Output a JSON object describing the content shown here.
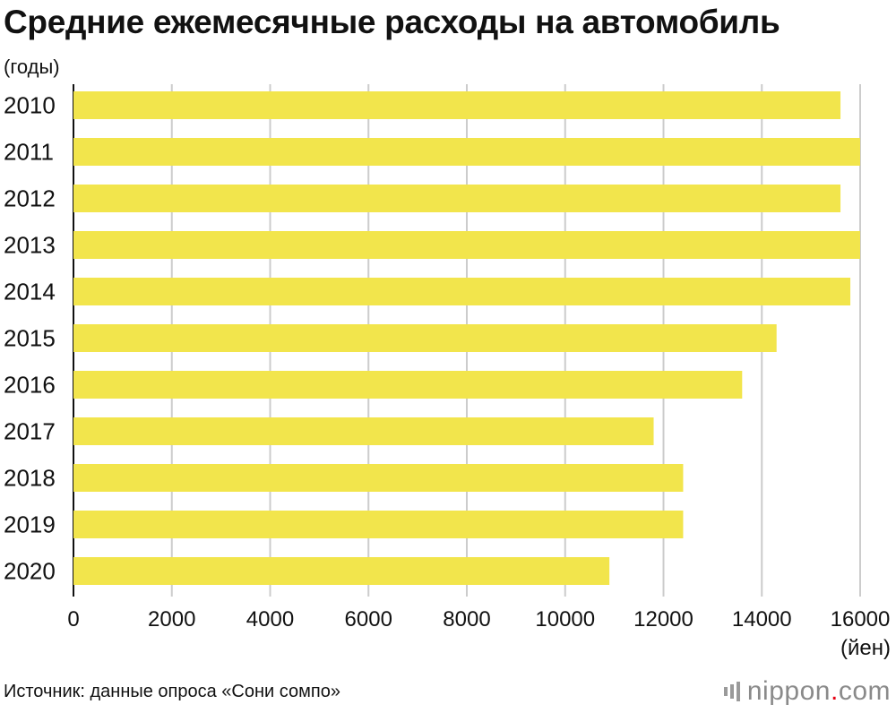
{
  "chart_data": {
    "type": "bar",
    "orientation": "horizontal",
    "title": "Средние ежемесячные расходы на автомобиль",
    "ylabel": "(годы)",
    "xlabel": "(йен)",
    "categories": [
      "2010",
      "2011",
      "2012",
      "2013",
      "2014",
      "2015",
      "2016",
      "2017",
      "2018",
      "2019",
      "2020"
    ],
    "values": [
      15600,
      16000,
      15600,
      16000,
      15800,
      14300,
      13600,
      11800,
      12400,
      12400,
      10900
    ],
    "xlim": [
      0,
      16000
    ],
    "xticks": [
      "0",
      "2000",
      "4000",
      "6000",
      "8000",
      "10000",
      "12000",
      "14000",
      "16000"
    ],
    "grid": "vertical",
    "bar_color": "#f2e54c",
    "grid_color": "#cccccc"
  },
  "footer": {
    "source": "Источник: данные опроса «Сони сомпо»",
    "logo_name": "nippon",
    "logo_dot": ".",
    "logo_tld": "com"
  }
}
